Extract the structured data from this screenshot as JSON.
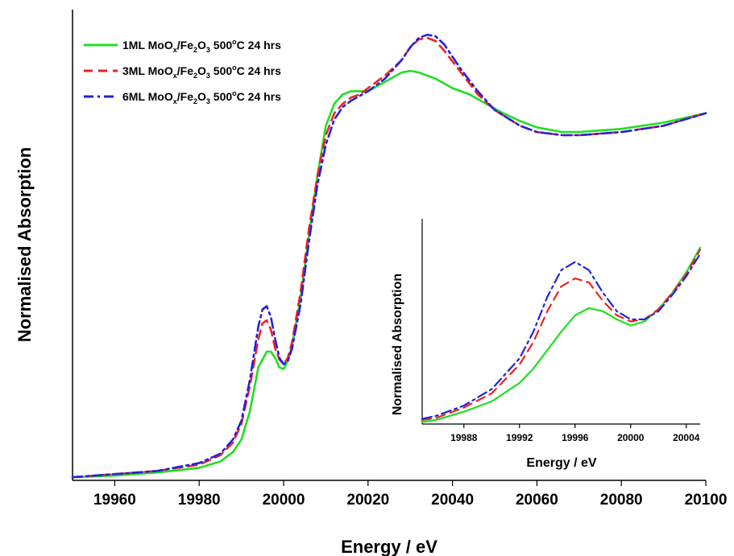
{
  "chart_data": [
    {
      "type": "line",
      "title": "",
      "xlabel": "Energy / eV",
      "ylabel": "Normalised Absorption",
      "xlim": [
        19950,
        20100
      ],
      "ylim": [
        0,
        1.5
      ],
      "xticks": [
        19960,
        19980,
        20000,
        20020,
        20040,
        20060,
        20080,
        20100
      ],
      "yticks_shown": false,
      "grid": false,
      "legend_position": "top-left",
      "series": [
        {
          "name": "1ML MoOx/Fe2O3 500°C 24 hrs",
          "color": "#22dd22",
          "style": "solid",
          "x": [
            19950,
            19960,
            19970,
            19980,
            19985,
            19988,
            19990,
            19992,
            19994,
            19996,
            19997,
            19998,
            19999,
            20000,
            20001,
            20002,
            20004,
            20006,
            20008,
            20010,
            20012,
            20014,
            20016,
            20018,
            20020,
            20024,
            20028,
            20030,
            20032,
            20036,
            20040,
            20044,
            20048,
            20052,
            20056,
            20060,
            20066,
            20070,
            20080,
            20090,
            20100
          ],
          "y": [
            0.01,
            0.015,
            0.025,
            0.04,
            0.06,
            0.09,
            0.13,
            0.22,
            0.36,
            0.41,
            0.41,
            0.39,
            0.36,
            0.355,
            0.38,
            0.43,
            0.58,
            0.78,
            0.97,
            1.13,
            1.2,
            1.23,
            1.24,
            1.24,
            1.24,
            1.27,
            1.3,
            1.305,
            1.3,
            1.28,
            1.25,
            1.23,
            1.2,
            1.17,
            1.145,
            1.125,
            1.11,
            1.11,
            1.12,
            1.14,
            1.17
          ]
        },
        {
          "name": "3ML MoOx/Fe2O3 500°C 24 hrs",
          "color": "#ee2222",
          "style": "dashed",
          "x": [
            19950,
            19960,
            19970,
            19980,
            19985,
            19988,
            19990,
            19992,
            19994,
            19995,
            19996,
            19997,
            19998,
            19999,
            20000,
            20001,
            20002,
            20004,
            20006,
            20008,
            20010,
            20012,
            20014,
            20016,
            20018,
            20020,
            20024,
            20028,
            20030,
            20032,
            20034,
            20036,
            20038,
            20042,
            20046,
            20050,
            20056,
            20060,
            20066,
            20070,
            20080,
            20090,
            20100
          ],
          "y": [
            0.01,
            0.02,
            0.03,
            0.05,
            0.08,
            0.12,
            0.18,
            0.3,
            0.45,
            0.5,
            0.51,
            0.48,
            0.42,
            0.385,
            0.37,
            0.39,
            0.44,
            0.6,
            0.8,
            0.97,
            1.1,
            1.17,
            1.2,
            1.22,
            1.23,
            1.25,
            1.29,
            1.34,
            1.38,
            1.405,
            1.41,
            1.4,
            1.37,
            1.3,
            1.23,
            1.18,
            1.13,
            1.11,
            1.1,
            1.1,
            1.11,
            1.13,
            1.17
          ]
        },
        {
          "name": "6ML MoOx/Fe2O3 500°C 24 hrs",
          "color": "#2222dd",
          "style": "dashdot",
          "x": [
            19950,
            19960,
            19970,
            19980,
            19985,
            19988,
            19990,
            19992,
            19994,
            19995,
            19996,
            19997,
            19998,
            19999,
            20000,
            20001,
            20002,
            20004,
            20006,
            20008,
            20010,
            20012,
            20014,
            20016,
            20018,
            20020,
            20024,
            20028,
            20030,
            20032,
            20034,
            20036,
            20038,
            20042,
            20046,
            20050,
            20056,
            20060,
            20066,
            20070,
            20080,
            20090,
            20100
          ],
          "y": [
            0.01,
            0.02,
            0.03,
            0.055,
            0.085,
            0.13,
            0.19,
            0.32,
            0.49,
            0.545,
            0.555,
            0.52,
            0.45,
            0.39,
            0.37,
            0.38,
            0.42,
            0.56,
            0.76,
            0.94,
            1.07,
            1.15,
            1.19,
            1.21,
            1.225,
            1.24,
            1.28,
            1.34,
            1.38,
            1.41,
            1.42,
            1.415,
            1.39,
            1.31,
            1.24,
            1.18,
            1.13,
            1.11,
            1.1,
            1.1,
            1.11,
            1.13,
            1.17
          ]
        }
      ]
    },
    {
      "type": "line",
      "title": "",
      "xlabel": "Energy / eV",
      "ylabel": "Normalised Absorption",
      "xlim": [
        19985,
        20005
      ],
      "ylim": [
        0,
        1
      ],
      "xticks": [
        19988,
        19992,
        19996,
        20000,
        20004
      ],
      "yticks_shown": false,
      "grid": false,
      "series": [
        {
          "name": "1ML",
          "color": "#22dd22",
          "style": "solid",
          "x": [
            19985,
            19986,
            19988,
            19990,
            19992,
            19993,
            19994,
            19995,
            19996,
            19997,
            19998,
            19999,
            20000,
            20001,
            20002,
            20003,
            20004,
            20005
          ],
          "y": [
            0.01,
            0.02,
            0.06,
            0.11,
            0.2,
            0.27,
            0.36,
            0.45,
            0.53,
            0.565,
            0.55,
            0.51,
            0.48,
            0.5,
            0.56,
            0.64,
            0.74,
            0.86
          ]
        },
        {
          "name": "3ML",
          "color": "#ee2222",
          "style": "dashed",
          "x": [
            19985,
            19986,
            19988,
            19990,
            19992,
            19993,
            19994,
            19995,
            19996,
            19997,
            19998,
            19999,
            20000,
            20001,
            20002,
            20003,
            20004,
            20005
          ],
          "y": [
            0.02,
            0.03,
            0.08,
            0.15,
            0.29,
            0.4,
            0.55,
            0.67,
            0.71,
            0.69,
            0.6,
            0.53,
            0.5,
            0.51,
            0.56,
            0.64,
            0.73,
            0.85
          ]
        },
        {
          "name": "6ML",
          "color": "#2222dd",
          "style": "dashdot",
          "x": [
            19985,
            19986,
            19988,
            19990,
            19992,
            19993,
            19994,
            19995,
            19996,
            19997,
            19998,
            19999,
            20000,
            20001,
            20002,
            20003,
            20004,
            20005
          ],
          "y": [
            0.025,
            0.04,
            0.09,
            0.17,
            0.32,
            0.45,
            0.62,
            0.75,
            0.79,
            0.75,
            0.64,
            0.55,
            0.51,
            0.51,
            0.55,
            0.63,
            0.72,
            0.83
          ]
        }
      ]
    }
  ]
}
